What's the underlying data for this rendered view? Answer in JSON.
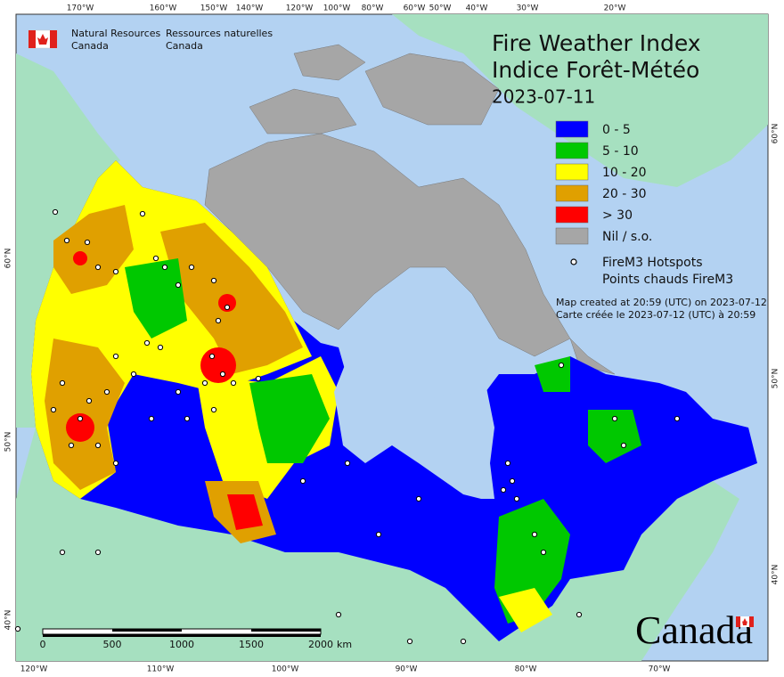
{
  "header": {
    "org_en": [
      "Natural Resources",
      "Canada"
    ],
    "org_fr": [
      "Ressources naturelles",
      "Canada"
    ]
  },
  "title": [
    "Fire Weather Index",
    "Indice Forêt-Météo"
  ],
  "date": "2023-07-11",
  "legend": {
    "items": [
      {
        "label": "0 - 5",
        "color": "#0000ff"
      },
      {
        "label": "5 - 10",
        "color": "#00c800"
      },
      {
        "label": "10 - 20",
        "color": "#ffff00"
      },
      {
        "label": "20 - 30",
        "color": "#e0a000"
      },
      {
        "label": "> 30",
        "color": "#ff0000"
      },
      {
        "label": "Nil / s.o.",
        "color": "#a6a6a6"
      }
    ],
    "hotspots": [
      "FireM3 Hotspots",
      "Points chauds FireM3"
    ]
  },
  "notes": [
    "Map created at 20:59 (UTC) on 2023-07-12",
    "Carte créée le 2023-07-12 (UTC) à 20:59"
  ],
  "top_labels": [
    "170°W",
    "160°W",
    "150°W",
    "140°W",
    "120°W",
    "100°W",
    "80°W",
    "60°W",
    "50°W",
    "40°W",
    "30°W",
    "20°W"
  ],
  "bottom_labels": [
    "120°W",
    "110°W",
    "100°W",
    "90°W",
    "80°W",
    "70°W"
  ],
  "left_labels": [
    "60°N",
    "50°N",
    "40°N"
  ],
  "right_labels": [
    "60°N",
    "50°N",
    "40°N"
  ],
  "scale": {
    "ticks": [
      "0",
      "500",
      "1000",
      "1500",
      "2000"
    ],
    "unit": "km"
  },
  "wordmark": "Canada"
}
